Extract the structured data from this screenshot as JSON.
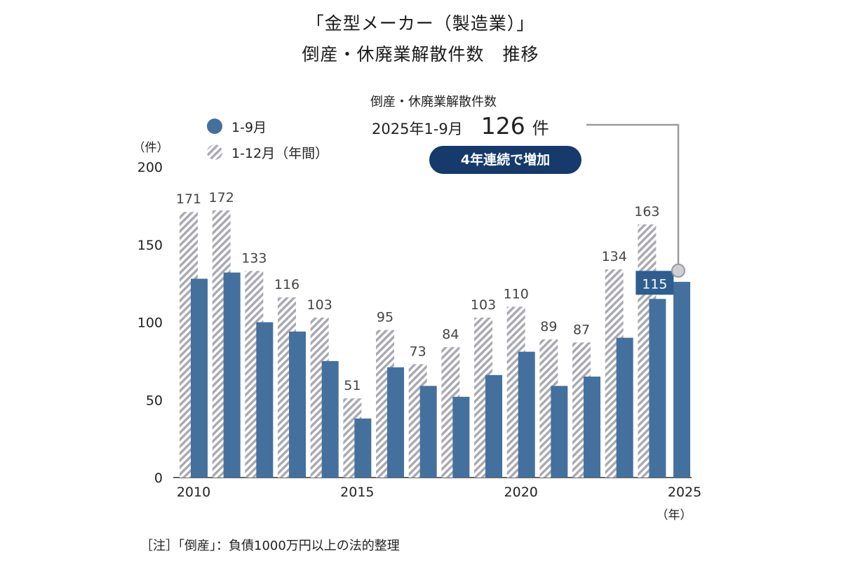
{
  "title": {
    "line1": "「金型メーカー（製造業）」",
    "line2": "倒産・休廃業解散件数　推移"
  },
  "callout": {
    "heading": "倒産・休廃業解散件数",
    "period": "2025年1-9月",
    "value": "126",
    "unit": "件",
    "badge": "4年連続で増加"
  },
  "note": "［注］「倒産」：負債1000万円以上の法的整理",
  "colors": {
    "series_jan_sep": "#44709e",
    "series_full_year_stripe": "#a8a8b0",
    "badge_bg": "#153a6b",
    "connector": "#9a9a9a"
  },
  "chart_data": {
    "type": "bar",
    "categories": [
      "2010",
      "2011",
      "2012",
      "2013",
      "2014",
      "2015",
      "2016",
      "2017",
      "2018",
      "2019",
      "2020",
      "2021",
      "2022",
      "2023",
      "2024",
      "2025"
    ],
    "x_tick_labels": [
      {
        "category": "2010",
        "label": "2010"
      },
      {
        "category": "2015",
        "label": "2015"
      },
      {
        "category": "2020",
        "label": "2020"
      },
      {
        "category": "2025",
        "label": "2025"
      }
    ],
    "x_unit": "（年）",
    "y_unit": "（件）",
    "ylim": [
      0,
      200
    ],
    "y_ticks": [
      0,
      50,
      100,
      150,
      200
    ],
    "grid": false,
    "legend_position": "top-left",
    "series": [
      {
        "name": "1-12月（年間）",
        "style": "hatched",
        "values": [
          171,
          172,
          133,
          116,
          103,
          51,
          95,
          73,
          84,
          103,
          110,
          89,
          87,
          134,
          163,
          null
        ],
        "labels_shown": true
      },
      {
        "name": "1-9月",
        "style": "solid",
        "values": [
          128,
          132,
          100,
          94,
          75,
          38,
          71,
          59,
          52,
          66,
          81,
          59,
          65,
          90,
          115,
          126
        ],
        "labeled_point": {
          "category": "2024",
          "label": "115"
        }
      }
    ]
  }
}
